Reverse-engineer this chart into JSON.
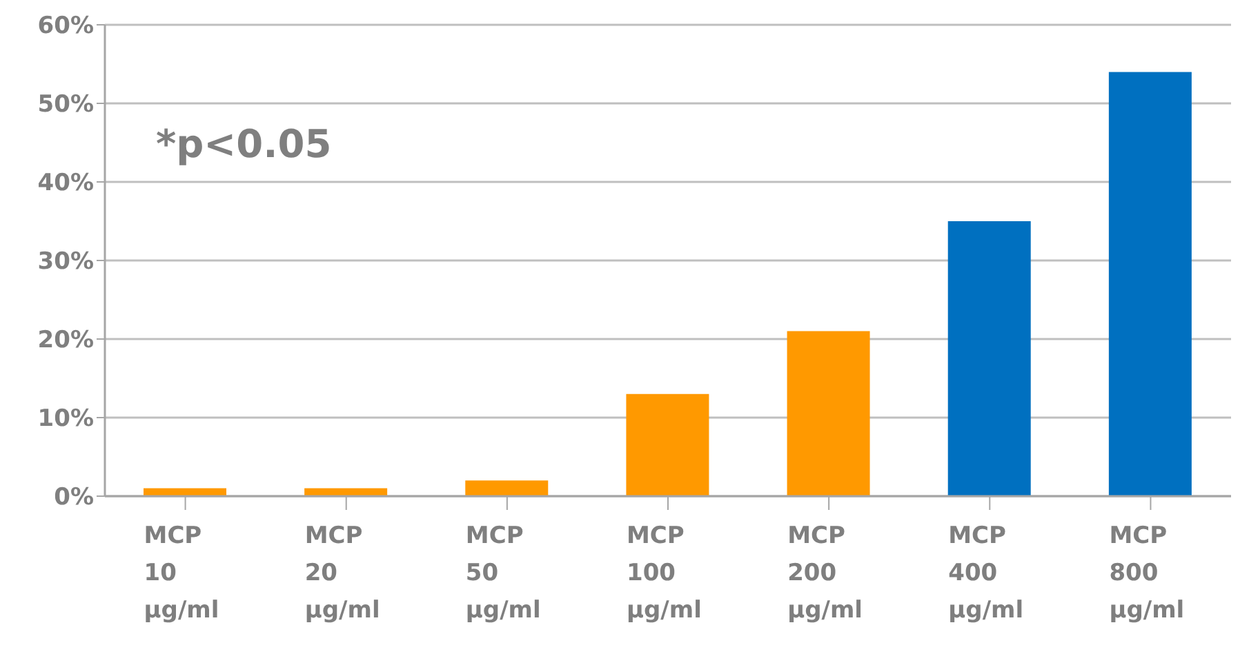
{
  "chart_data": {
    "type": "bar",
    "categories": [
      "MCP 10 µg/ml",
      "MCP 20 µg/ml",
      "MCP 50 µg/ml",
      "MCP 100 µg/ml",
      "MCP 200 µg/ml",
      "MCP 400 µg/ml",
      "MCP 800 µg/ml"
    ],
    "values": [
      1,
      1,
      2,
      13,
      21,
      35,
      54
    ],
    "colors": [
      "#ff9900",
      "#ff9900",
      "#ff9900",
      "#ff9900",
      "#ff9900",
      "#0070c0",
      "#0070c0"
    ],
    "ylim": [
      0,
      60
    ],
    "yticks": [
      {
        "value": 0,
        "label": "0%"
      },
      {
        "value": 10,
        "label": "10%"
      },
      {
        "value": 20,
        "label": "20%"
      },
      {
        "value": 30,
        "label": "30%"
      },
      {
        "value": 40,
        "label": "40%"
      },
      {
        "value": 50,
        "label": "50%"
      },
      {
        "value": 60,
        "label": "60%"
      }
    ],
    "grid": "y",
    "annotations": [
      "*p<0.05"
    ]
  }
}
